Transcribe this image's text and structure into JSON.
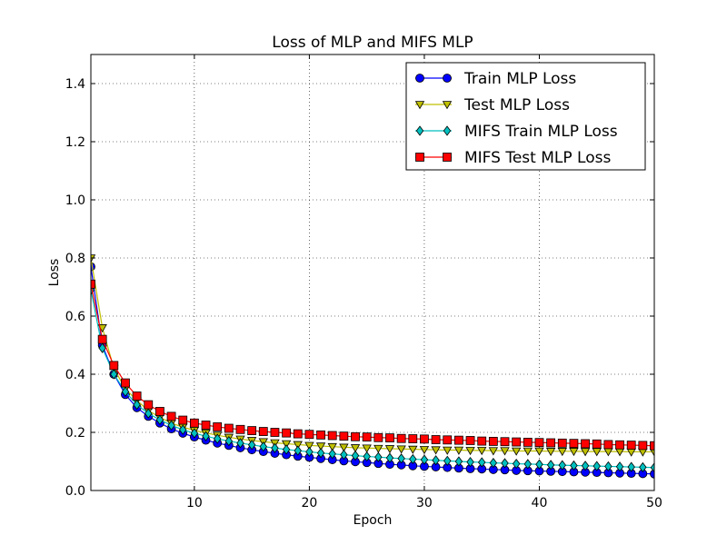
{
  "chart_data": {
    "type": "line",
    "title": "Loss of MLP and MIFS MLP",
    "xlabel": "Epoch",
    "ylabel": "Loss",
    "xlim": [
      1,
      50
    ],
    "ylim": [
      0.0,
      1.5
    ],
    "xticks": [
      10,
      20,
      30,
      40,
      50
    ],
    "yticks": [
      0.0,
      0.2,
      0.4,
      0.6,
      0.8,
      1.0,
      1.2,
      1.4
    ],
    "grid": true,
    "legend_position": "top-right",
    "x": [
      1,
      2,
      3,
      4,
      5,
      6,
      7,
      8,
      9,
      10,
      11,
      12,
      13,
      14,
      15,
      16,
      17,
      18,
      19,
      20,
      21,
      22,
      23,
      24,
      25,
      26,
      27,
      28,
      29,
      30,
      31,
      32,
      33,
      34,
      35,
      36,
      37,
      38,
      39,
      40,
      41,
      42,
      43,
      44,
      45,
      46,
      47,
      48,
      49,
      50
    ],
    "series": [
      {
        "name": "Train MLP Loss",
        "color": "#0000ff",
        "marker": "circle",
        "values": [
          0.77,
          0.5,
          0.4,
          0.33,
          0.285,
          0.255,
          0.232,
          0.212,
          0.197,
          0.184,
          0.173,
          0.163,
          0.155,
          0.147,
          0.14,
          0.134,
          0.128,
          0.123,
          0.118,
          0.114,
          0.11,
          0.106,
          0.102,
          0.099,
          0.096,
          0.093,
          0.09,
          0.088,
          0.085,
          0.083,
          0.081,
          0.079,
          0.077,
          0.075,
          0.074,
          0.072,
          0.071,
          0.069,
          0.068,
          0.067,
          0.066,
          0.065,
          0.064,
          0.063,
          0.062,
          0.061,
          0.06,
          0.059,
          0.058,
          0.057
        ]
      },
      {
        "name": "Test MLP Loss",
        "color": "#bfbf00",
        "marker": "triangle-down",
        "values": [
          0.8,
          0.56,
          0.42,
          0.35,
          0.31,
          0.275,
          0.252,
          0.232,
          0.218,
          0.207,
          0.198,
          0.19,
          0.183,
          0.177,
          0.172,
          0.168,
          0.164,
          0.161,
          0.158,
          0.155,
          0.153,
          0.151,
          0.149,
          0.147,
          0.146,
          0.145,
          0.144,
          0.143,
          0.142,
          0.141,
          0.14,
          0.139,
          0.139,
          0.138,
          0.138,
          0.137,
          0.137,
          0.136,
          0.136,
          0.136,
          0.135,
          0.135,
          0.135,
          0.134,
          0.134,
          0.134,
          0.134,
          0.133,
          0.133,
          0.133
        ]
      },
      {
        "name": "MIFS Train MLP Loss",
        "color": "#00bfbf",
        "marker": "diamond",
        "values": [
          0.69,
          0.49,
          0.4,
          0.34,
          0.295,
          0.265,
          0.243,
          0.224,
          0.209,
          0.197,
          0.187,
          0.178,
          0.17,
          0.163,
          0.157,
          0.151,
          0.146,
          0.141,
          0.137,
          0.133,
          0.129,
          0.126,
          0.123,
          0.12,
          0.117,
          0.115,
          0.112,
          0.11,
          0.108,
          0.106,
          0.104,
          0.102,
          0.1,
          0.098,
          0.097,
          0.095,
          0.094,
          0.092,
          0.091,
          0.09,
          0.088,
          0.087,
          0.086,
          0.085,
          0.084,
          0.083,
          0.082,
          0.081,
          0.08,
          0.079
        ]
      },
      {
        "name": "MIFS Test MLP Loss",
        "color": "#ff0000",
        "marker": "square",
        "values": [
          0.71,
          0.52,
          0.43,
          0.37,
          0.325,
          0.295,
          0.272,
          0.255,
          0.242,
          0.232,
          0.225,
          0.219,
          0.214,
          0.21,
          0.206,
          0.203,
          0.2,
          0.198,
          0.195,
          0.193,
          0.191,
          0.189,
          0.187,
          0.185,
          0.184,
          0.182,
          0.181,
          0.179,
          0.178,
          0.177,
          0.175,
          0.174,
          0.173,
          0.172,
          0.17,
          0.169,
          0.168,
          0.167,
          0.166,
          0.165,
          0.164,
          0.163,
          0.162,
          0.161,
          0.16,
          0.158,
          0.157,
          0.156,
          0.155,
          0.154
        ]
      }
    ]
  }
}
